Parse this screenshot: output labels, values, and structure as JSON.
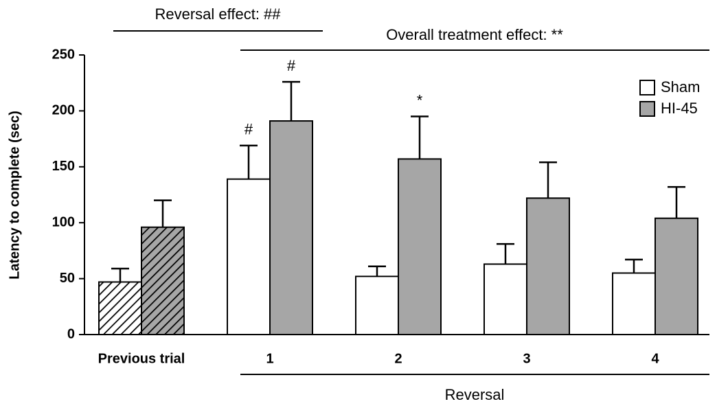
{
  "chart_data": {
    "type": "bar",
    "y_label": "Latency to complete (sec)",
    "categories": [
      "Previous trial",
      "1",
      "2",
      "3",
      "4"
    ],
    "series": [
      {
        "name": "Sham",
        "color": "#ffffff",
        "values": [
          47,
          139,
          52,
          63,
          55
        ],
        "errors": [
          12,
          30,
          9,
          18,
          12
        ]
      },
      {
        "name": "HI-45",
        "color": "#a6a6a6",
        "values": [
          96,
          191,
          157,
          122,
          104
        ],
        "errors": [
          24,
          35,
          38,
          32,
          28
        ]
      }
    ],
    "ylim": [
      0,
      250
    ],
    "yticks": [
      0,
      50,
      100,
      150,
      200,
      250
    ],
    "hatch_first_category": true,
    "reversal_effect": "Reversal effect: ##",
    "overall_effect": "Overall treatment effect: **",
    "x_group_label": "Reversal",
    "annotations": [
      "#",
      "#",
      "*"
    ]
  }
}
